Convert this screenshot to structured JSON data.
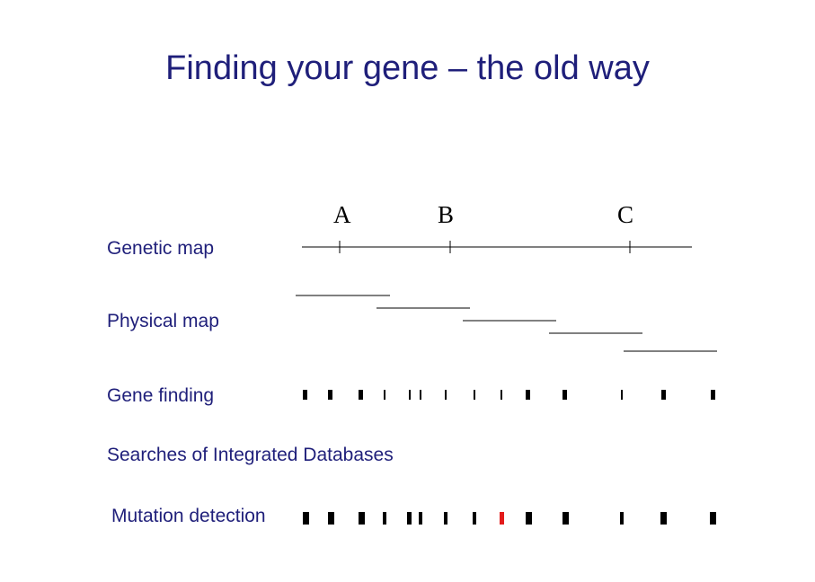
{
  "slide": {
    "title": "Finding your gene – the old way"
  },
  "rows": {
    "genetic_map": "Genetic map",
    "physical_map": "Physical map",
    "gene_finding": "Gene finding",
    "searches": "Searches of Integrated Databases",
    "mutation_detection": "Mutation detection"
  },
  "genetic_markers": [
    {
      "label": "A"
    },
    {
      "label": "B"
    },
    {
      "label": "C"
    }
  ],
  "colors": {
    "text_accent": "#1f1f7a",
    "mutation_highlight": "#e31b1b",
    "lines": "#000000"
  }
}
